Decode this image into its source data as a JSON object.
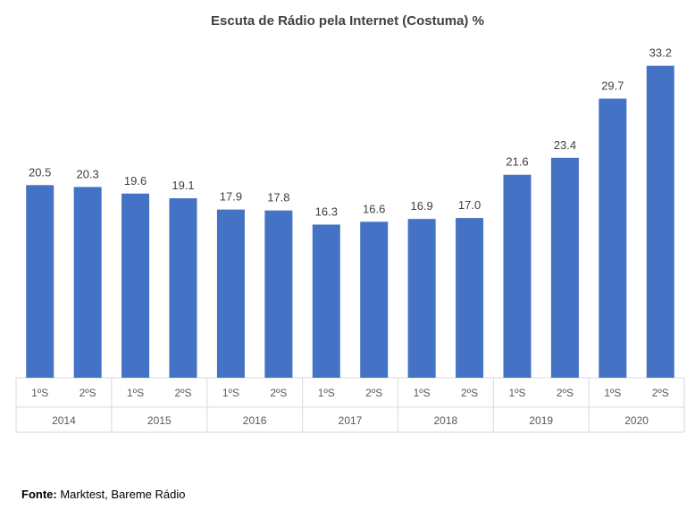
{
  "chart_data": {
    "type": "bar",
    "title": "Escuta de Rádio pela Internet (Costuma) %",
    "xlabel": "",
    "ylabel": "",
    "ylim": [
      0,
      34.5
    ],
    "groups": [
      {
        "year": "2014",
        "categories": [
          "1ºS",
          "2ºS"
        ],
        "values": [
          20.5,
          20.3
        ],
        "labels": [
          "20.5",
          "20.3"
        ]
      },
      {
        "year": "2015",
        "categories": [
          "1ºS",
          "2ºS"
        ],
        "values": [
          19.6,
          19.1
        ],
        "labels": [
          "19.6",
          "19.1"
        ]
      },
      {
        "year": "2016",
        "categories": [
          "1ºS",
          "2ºS"
        ],
        "values": [
          17.9,
          17.8
        ],
        "labels": [
          "17.9",
          "17.8"
        ]
      },
      {
        "year": "2017",
        "categories": [
          "1ºS",
          "2ºS"
        ],
        "values": [
          16.3,
          16.6
        ],
        "labels": [
          "16.3",
          "16.6"
        ]
      },
      {
        "year": "2018",
        "categories": [
          "1ºS",
          "2ºS"
        ],
        "values": [
          16.9,
          17.0
        ],
        "labels": [
          "16.9",
          "17.0"
        ]
      },
      {
        "year": "2019",
        "categories": [
          "1ºS",
          "2ºS"
        ],
        "values": [
          21.6,
          23.4
        ],
        "labels": [
          "21.6",
          "23.4"
        ]
      },
      {
        "year": "2020",
        "categories": [
          "1ºS",
          "2ºS"
        ],
        "values": [
          29.7,
          33.2
        ],
        "labels": [
          "29.7",
          "33.2"
        ]
      }
    ],
    "bar_color": "#4472C4",
    "grid": false,
    "legend": "none"
  },
  "source": {
    "label": "Fonte:",
    "text": " Marktest, Bareme Rádio"
  }
}
